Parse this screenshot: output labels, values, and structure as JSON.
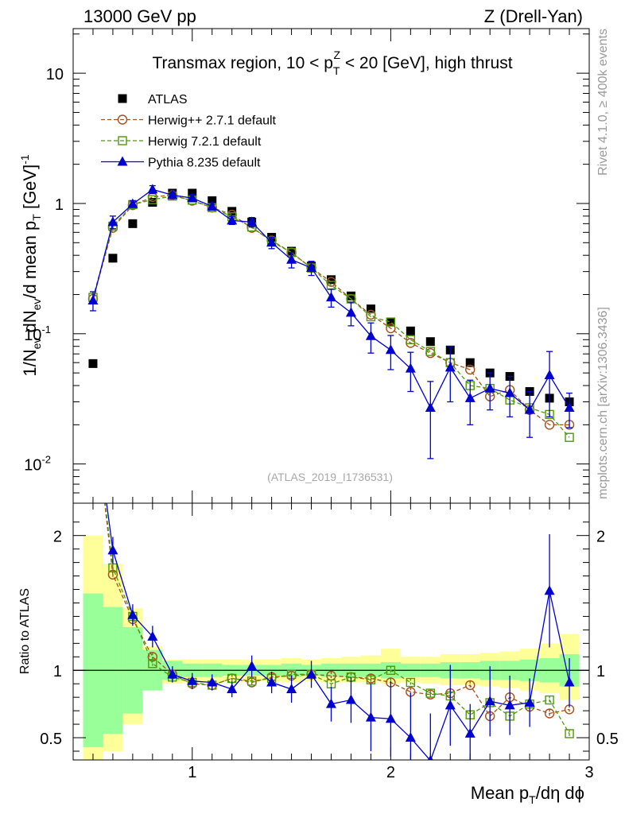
{
  "header": {
    "energy": "13000 GeV pp",
    "process": "Z (Drell-Yan)"
  },
  "side_labels": {
    "rivet": "Rivet 4.1.0, ≥ 400k events",
    "source": "mcplots.cern.ch [arXiv:1306.3436]"
  },
  "chart_data": [
    {
      "type": "scatter",
      "title": "Transmax region, 10 < p_T^Z < 20 [GeV], high thrust",
      "title_parts": {
        "a": "Transmax region, 10 < p",
        "sub": "T",
        "sup": "Z",
        "b": " < 20 [GeV], high thrust"
      },
      "ylabel": "1/N_ev dN_ev/d mean p_T [GeV]^-1",
      "ylabel_parts": {
        "a": "1/N",
        "sub1": "ev",
        "b": " dN",
        "sub2": "ev",
        "c": "/d mean p",
        "sub3": "T",
        "d": " [GeV]",
        "sup": "-1"
      },
      "xlabel": "Mean p_T/dη dϕ",
      "xlabel_parts": {
        "a": "Mean p",
        "sub": "T",
        "b": "/dη dϕ"
      },
      "yscale": "log",
      "xlim": [
        0.4,
        3.0
      ],
      "ylim": [
        0.005,
        22
      ],
      "yticks": [
        0.01,
        0.1,
        1,
        10
      ],
      "ytick_labels": [
        {
          "base": "10",
          "exp": "-2"
        },
        {
          "base": "10",
          "exp": "-1"
        },
        {
          "base": "1",
          "exp": ""
        },
        {
          "base": "10",
          "exp": ""
        }
      ],
      "analysis_tag": "(ATLAS_2019_I1736531)",
      "legend_position": "top-left",
      "x": [
        0.5,
        0.6,
        0.7,
        0.8,
        0.9,
        1.0,
        1.1,
        1.2,
        1.3,
        1.4,
        1.5,
        1.6,
        1.7,
        1.8,
        1.9,
        2.0,
        2.1,
        2.2,
        2.3,
        2.4,
        2.5,
        2.6,
        2.7,
        2.8,
        2.9
      ],
      "series": [
        {
          "name": "ATLAS",
          "color": "#000000",
          "marker": "square-filled",
          "values": [
            0.059,
            0.38,
            0.7,
            1.02,
            1.2,
            1.2,
            1.05,
            0.87,
            0.72,
            0.55,
            0.43,
            0.33,
            0.26,
            0.195,
            0.155,
            0.123,
            0.105,
            0.087,
            0.075,
            0.06,
            0.05,
            0.047,
            0.036,
            0.032,
            0.03
          ]
        },
        {
          "name": "Herwig++ 2.7.1 default",
          "color": "#a3501a",
          "marker": "circle-open",
          "dashed": true,
          "values": [
            0.185,
            0.65,
            0.97,
            1.12,
            1.16,
            1.05,
            0.93,
            0.82,
            0.65,
            0.52,
            0.42,
            0.32,
            0.25,
            0.185,
            0.14,
            0.11,
            0.085,
            0.071,
            0.06,
            0.053,
            0.033,
            0.037,
            0.026,
            0.02,
            0.02
          ]
        },
        {
          "name": "Herwig 7.2.1 default",
          "color": "#4e9a06",
          "marker": "square-open",
          "dashed": true,
          "values": [
            0.19,
            0.67,
            0.98,
            1.07,
            1.14,
            1.06,
            0.93,
            0.79,
            0.66,
            0.51,
            0.42,
            0.32,
            0.235,
            0.185,
            0.135,
            0.123,
            0.09,
            0.073,
            0.06,
            0.04,
            0.038,
            0.031,
            0.027,
            0.024,
            0.016
          ]
        },
        {
          "name": "Pythia 8.235 default",
          "color": "#0000d0",
          "marker": "triangle-filled",
          "values": [
            0.18,
            0.72,
            0.99,
            1.28,
            1.16,
            1.1,
            0.95,
            0.74,
            0.72,
            0.5,
            0.37,
            0.32,
            0.19,
            0.145,
            0.096,
            0.075,
            0.054,
            0.027,
            0.055,
            0.032,
            0.038,
            0.035,
            0.026,
            0.048,
            0.027
          ],
          "err_lo": [
            0.03,
            0.08,
            0.06,
            0.09,
            0.07,
            0.07,
            0.06,
            0.05,
            0.06,
            0.05,
            0.05,
            0.04,
            0.03,
            0.03,
            0.025,
            0.022,
            0.018,
            0.016,
            0.025,
            0.012,
            0.012,
            0.012,
            0.01,
            0.025,
            0.008
          ],
          "err_hi": [
            0.03,
            0.08,
            0.06,
            0.09,
            0.07,
            0.07,
            0.06,
            0.05,
            0.06,
            0.05,
            0.05,
            0.04,
            0.03,
            0.03,
            0.025,
            0.022,
            0.018,
            0.016,
            0.025,
            0.012,
            0.012,
            0.012,
            0.01,
            0.025,
            0.008
          ]
        }
      ]
    },
    {
      "type": "line",
      "ylabel": "Ratio to ATLAS",
      "xlim": [
        0.4,
        3.0
      ],
      "ylim": [
        0.335,
        2.24
      ],
      "yticks": [
        0.5,
        1,
        2
      ],
      "ytick_labels": [
        "0.5",
        "1",
        "2"
      ],
      "xticks": [
        1,
        2,
        3
      ],
      "xtick_labels": [
        "1",
        "2",
        "3"
      ],
      "x": [
        0.5,
        0.6,
        0.7,
        0.8,
        0.9,
        1.0,
        1.1,
        1.2,
        1.3,
        1.4,
        1.5,
        1.6,
        1.7,
        1.8,
        1.9,
        2.0,
        2.1,
        2.2,
        2.3,
        2.4,
        2.5,
        2.6,
        2.7,
        2.8,
        2.9
      ],
      "bands": {
        "green_lo": [
          0.43,
          0.53,
          0.68,
          0.85,
          0.93,
          0.95,
          0.95,
          0.96,
          0.96,
          0.96,
          0.95,
          0.96,
          0.95,
          0.95,
          0.95,
          0.94,
          0.95,
          0.95,
          0.94,
          0.94,
          0.93,
          0.93,
          0.92,
          0.91,
          0.88
        ],
        "green_hi": [
          1.57,
          1.47,
          1.32,
          1.15,
          1.07,
          1.05,
          1.05,
          1.04,
          1.04,
          1.04,
          1.05,
          1.04,
          1.05,
          1.05,
          1.05,
          1.06,
          1.05,
          1.05,
          1.06,
          1.06,
          1.07,
          1.07,
          1.08,
          1.09,
          1.12
        ],
        "yellow_lo": [
          0.3,
          0.4,
          0.6,
          0.86,
          0.9,
          0.91,
          0.91,
          0.92,
          0.92,
          0.92,
          0.91,
          0.92,
          0.91,
          0.91,
          0.91,
          0.9,
          0.91,
          0.9,
          0.89,
          0.89,
          0.88,
          0.87,
          0.85,
          0.83,
          0.78
        ],
        "yellow_hi": [
          2.0,
          1.79,
          1.46,
          1.18,
          1.08,
          1.08,
          1.08,
          1.08,
          1.08,
          1.08,
          1.09,
          1.08,
          1.09,
          1.1,
          1.11,
          1.16,
          1.1,
          1.1,
          1.12,
          1.12,
          1.13,
          1.14,
          1.16,
          1.2,
          1.27
        ]
      },
      "series": [
        {
          "name": "Herwig++ 2.7.1 default",
          "color": "#a3501a",
          "marker": "circle-open",
          "dashed": true,
          "values": [
            3.0,
            1.71,
            1.38,
            1.1,
            0.97,
            0.9,
            0.89,
            0.94,
            0.91,
            0.95,
            0.96,
            0.97,
            0.96,
            0.95,
            0.94,
            0.91,
            0.84,
            0.82,
            0.83,
            0.89,
            0.66,
            0.8,
            0.73,
            0.68,
            0.71
          ]
        },
        {
          "name": "Herwig 7.2.1 default",
          "color": "#4e9a06",
          "marker": "square-open",
          "dashed": true,
          "values": [
            3.0,
            1.76,
            1.4,
            1.05,
            0.95,
            0.91,
            0.89,
            0.94,
            0.92,
            0.94,
            0.97,
            0.97,
            0.9,
            0.95,
            0.93,
            1.0,
            0.91,
            0.83,
            0.81,
            0.67,
            0.76,
            0.66,
            0.75,
            0.78,
            0.53
          ]
        },
        {
          "name": "Pythia 8.235 default",
          "color": "#0000d0",
          "marker": "triangle-filled",
          "values": [
            3.0,
            1.89,
            1.41,
            1.25,
            0.97,
            0.92,
            0.91,
            0.86,
            1.03,
            0.91,
            0.86,
            0.97,
            0.75,
            0.78,
            0.65,
            0.64,
            0.5,
            0.33,
            0.74,
            0.53,
            0.77,
            0.74,
            0.76,
            1.59,
            0.91
          ],
          "err": [
            0.2,
            0.1,
            0.08,
            0.08,
            0.06,
            0.06,
            0.06,
            0.06,
            0.08,
            0.08,
            0.1,
            0.1,
            0.13,
            0.17,
            0.25,
            0.28,
            0.33,
            0.35,
            0.3,
            0.22,
            0.26,
            0.22,
            0.18,
            0.42,
            0.18
          ]
        }
      ]
    }
  ]
}
